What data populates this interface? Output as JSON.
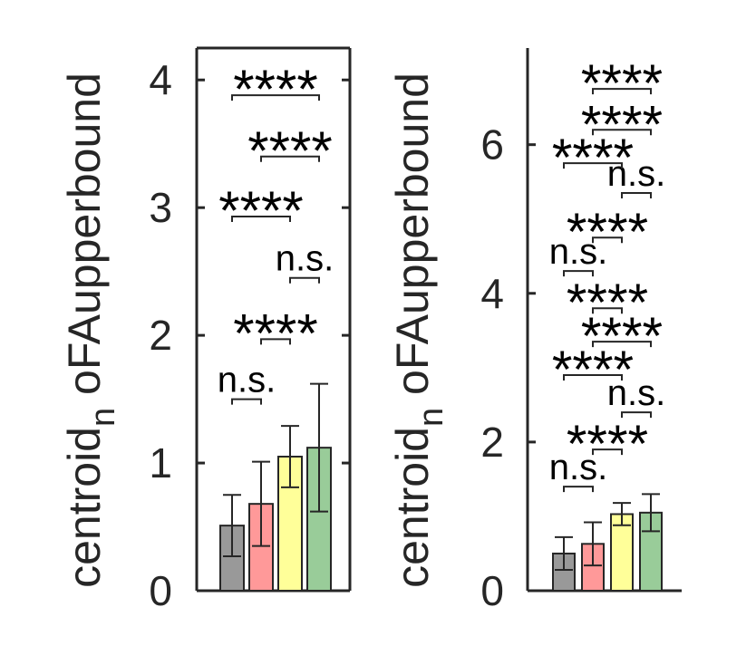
{
  "chart_data": [
    {
      "type": "bar",
      "ylabel": "centroid_n oFAupperbound",
      "ylabel_main": "centroid",
      "ylabel_sub": "n",
      "ylabel_rest": " oFAupperbound",
      "ylim": [
        0,
        4.25
      ],
      "yticks": [
        "0",
        "1",
        "2",
        "3",
        "4"
      ],
      "box": true,
      "colors": [
        "#999999",
        "#ff9999",
        "#ffff99",
        "#99cc99"
      ],
      "series": [
        {
          "values": [
            0.51,
            0.68,
            1.05,
            1.12
          ],
          "error_upper": [
            0.75,
            1.01,
            1.29,
            1.62
          ],
          "error_lower": [
            0.27,
            0.35,
            0.81,
            0.62
          ]
        }
      ],
      "significance": [
        {
          "from": 0,
          "to": 1,
          "label": "n.s.",
          "y": 1.5
        },
        {
          "from": 1,
          "to": 2,
          "label": "****",
          "y": 1.97
        },
        {
          "from": 2,
          "to": 3,
          "label": "n.s.",
          "y": 2.45
        },
        {
          "from": 0,
          "to": 2,
          "label": "****",
          "y": 2.93
        },
        {
          "from": 1,
          "to": 3,
          "label": "****",
          "y": 3.4
        },
        {
          "from": 0,
          "to": 3,
          "label": "****",
          "y": 3.88
        }
      ]
    },
    {
      "type": "bar",
      "ylabel": "centroid_n oFAupperbound",
      "ylabel_main": "centroid",
      "ylabel_sub": "n",
      "ylabel_rest": " oFAupperbound",
      "ylim": [
        0,
        7.3
      ],
      "yticks": [
        "0",
        "2",
        "4",
        "6"
      ],
      "box": false,
      "colors": [
        "#999999",
        "#ff9999",
        "#ffff99",
        "#99cc99"
      ],
      "series": [
        {
          "values": [
            0.5,
            0.63,
            1.03,
            1.05
          ],
          "error_upper": [
            0.72,
            0.92,
            1.18,
            1.3
          ],
          "error_lower": [
            0.28,
            0.34,
            0.88,
            0.8
          ]
        }
      ],
      "significance": [
        {
          "from": 0,
          "to": 1,
          "label": "n.s.",
          "y": 1.4
        },
        {
          "from": 1,
          "to": 2,
          "label": "****",
          "y": 1.9
        },
        {
          "from": 2,
          "to": 3,
          "label": "n.s.",
          "y": 2.4
        },
        {
          "from": 0,
          "to": 2,
          "label": "****",
          "y": 2.9
        },
        {
          "from": 1,
          "to": 3,
          "label": "****",
          "y": 3.35
        },
        {
          "from": 1,
          "to": 2,
          "label": "****",
          "y": 3.8
        },
        {
          "from": 0,
          "to": 1,
          "label": "n.s.",
          "y": 4.3
        },
        {
          "from": 1,
          "to": 2,
          "label": "****",
          "y": 4.75
        },
        {
          "from": 2,
          "to": 3,
          "label": "n.s.",
          "y": 5.35
        },
        {
          "from": 0,
          "to": 2,
          "label": "****",
          "y": 5.75
        },
        {
          "from": 1,
          "to": 3,
          "label": "****",
          "y": 6.2
        },
        {
          "from": 1,
          "to": 3,
          "label": "****",
          "y": 6.75
        }
      ]
    }
  ]
}
